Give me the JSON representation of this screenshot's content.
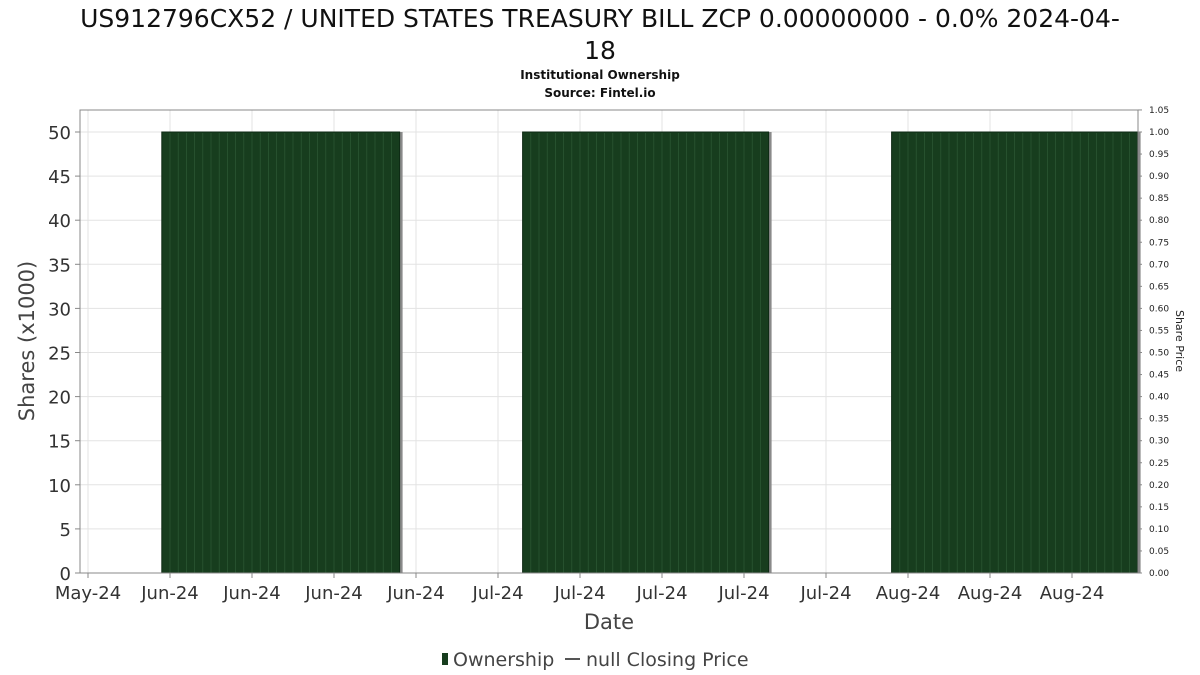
{
  "chart_data": {
    "type": "bar",
    "title_line1": "US912796CX52 / UNITED STATES TREASURY BILL ZCP 0.00000000 - 0.0% 2024-04-",
    "title_line2": "18",
    "subtitle": "Institutional Ownership",
    "source": "Source: Fintel.io",
    "xlabel": "Date",
    "ylabel": "Shares (x1000)",
    "y2label": "Share Price",
    "x_tick_labels": [
      "May-24",
      "Jun-24",
      "Jun-24",
      "Jun-24",
      "Jun-24",
      "Jul-24",
      "Jul-24",
      "Jul-24",
      "Jul-24",
      "Jul-24",
      "Aug-24",
      "Aug-24",
      "Aug-24"
    ],
    "ylim": [
      0,
      52.5
    ],
    "y_ticks": [
      0,
      5,
      10,
      15,
      20,
      25,
      30,
      35,
      40,
      45,
      50
    ],
    "y2lim": [
      0,
      1.05
    ],
    "y2_ticks": [
      "0.00",
      "0.05",
      "0.10",
      "0.15",
      "0.20",
      "0.25",
      "0.30",
      "0.35",
      "0.40",
      "0.45",
      "0.50",
      "0.55",
      "0.60",
      "0.65",
      "0.70",
      "0.75",
      "0.80",
      "0.85",
      "0.90",
      "0.95",
      "1.00",
      "1.05"
    ],
    "grid": true,
    "legend_position": "bottom-center",
    "series": [
      {
        "name": "Ownership",
        "color": "#173d1e",
        "segments": [
          {
            "start": "2024-05-24",
            "end": "2024-06-22",
            "value": 50
          },
          {
            "start": "2024-07-07",
            "end": "2024-08-06",
            "value": 50
          },
          {
            "start": "2024-08-21",
            "end": "2024-09-20",
            "value": 50
          }
        ]
      },
      {
        "name": "null Closing Price",
        "color": "#555555",
        "values": []
      }
    ]
  }
}
